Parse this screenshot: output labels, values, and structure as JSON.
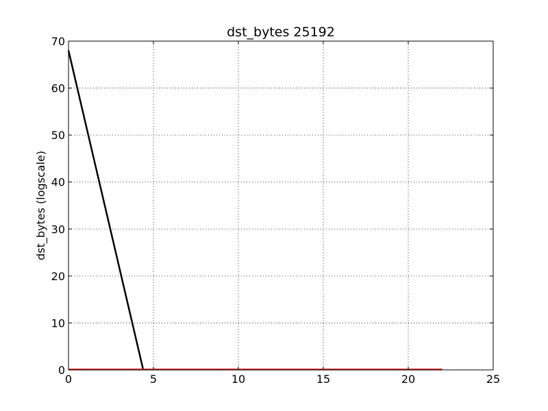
{
  "chart_data": {
    "type": "line",
    "title": "dst_bytes 25192",
    "xlabel": "",
    "ylabel": "dst_bytes (logscale)",
    "xlim": [
      0,
      25
    ],
    "ylim": [
      0,
      70
    ],
    "xticks": [
      0,
      5,
      10,
      15,
      20,
      25
    ],
    "yticks": [
      0,
      10,
      20,
      30,
      40,
      50,
      60,
      70
    ],
    "xtick_labels": [
      "0",
      "5",
      "10",
      "15",
      "20",
      "25"
    ],
    "ytick_labels": [
      "0",
      "10",
      "20",
      "30",
      "40",
      "50",
      "60",
      "70"
    ],
    "grid": true,
    "legend": "none",
    "series": [
      {
        "color": "#000000",
        "x": [
          0,
          4.4
        ],
        "y": [
          68,
          0
        ]
      },
      {
        "color": "#d62728",
        "x": [
          0,
          22
        ],
        "y": [
          0.1,
          0.1
        ]
      }
    ]
  }
}
